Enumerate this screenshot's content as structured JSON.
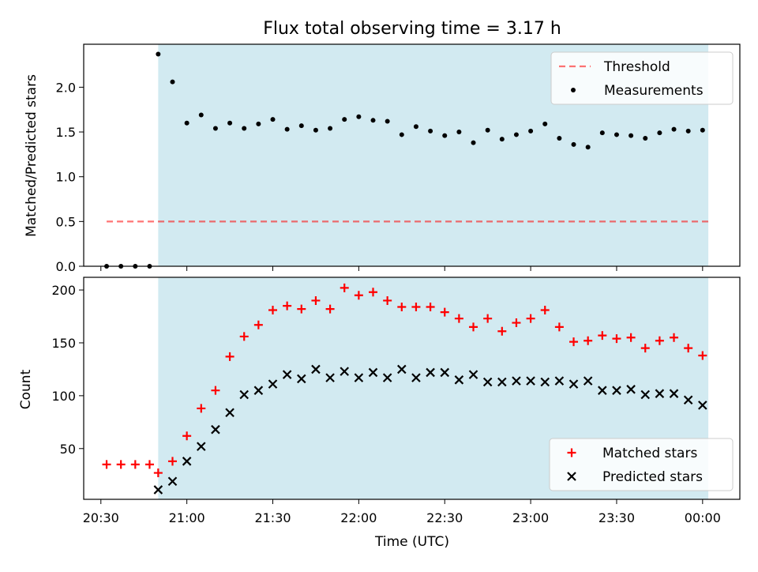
{
  "title": "Flux total observing time = 3.17 h",
  "xlabel": "Time (UTC)",
  "colors": {
    "shade": "#add8e6",
    "threshold": "#ff0000",
    "matched": "#ff0000",
    "predicted": "#000000",
    "measurement": "#000000"
  },
  "x_tick_labels": [
    "20:30",
    "21:00",
    "21:30",
    "22:00",
    "22:30",
    "23:00",
    "23:30",
    "00:00"
  ],
  "chart_data": [
    {
      "type": "scatter",
      "panel": "top",
      "ylabel": "Matched/Predicted stars",
      "ylim": [
        0,
        2.48
      ],
      "y_ticks": [
        0.0,
        0.5,
        1.0,
        1.5,
        2.0
      ],
      "y_tick_labels": [
        "0.0",
        "0.5",
        "1.0",
        "1.5",
        "2.0"
      ],
      "xlim": [
        "20:24",
        "00:13"
      ],
      "legend_position": "top-right",
      "shaded_region": {
        "x_start": "20:50",
        "x_end": "00:02"
      },
      "threshold": {
        "name": "Threshold",
        "y": 0.5,
        "x_start": "20:32",
        "x_end": "00:02",
        "style": "dashed"
      },
      "series": [
        {
          "name": "Measurements",
          "marker": "dot",
          "x": [
            "20:32",
            "20:37",
            "20:42",
            "20:47",
            "20:50",
            "20:55",
            "21:00",
            "21:05",
            "21:10",
            "21:15",
            "21:20",
            "21:25",
            "21:30",
            "21:35",
            "21:40",
            "21:45",
            "21:50",
            "21:55",
            "22:00",
            "22:05",
            "22:10",
            "22:15",
            "22:20",
            "22:25",
            "22:30",
            "22:35",
            "22:40",
            "22:45",
            "22:50",
            "22:55",
            "23:00",
            "23:05",
            "23:10",
            "23:15",
            "23:20",
            "23:25",
            "23:30",
            "23:35",
            "23:40",
            "23:45",
            "23:50",
            "23:55",
            "00:00"
          ],
          "y": [
            0.0,
            0.0,
            0.0,
            0.0,
            2.37,
            2.06,
            1.6,
            1.69,
            1.54,
            1.6,
            1.54,
            1.59,
            1.64,
            1.53,
            1.57,
            1.52,
            1.54,
            1.64,
            1.67,
            1.63,
            1.62,
            1.47,
            1.56,
            1.51,
            1.46,
            1.5,
            1.38,
            1.52,
            1.42,
            1.47,
            1.51,
            1.59,
            1.43,
            1.36,
            1.33,
            1.49,
            1.47,
            1.46,
            1.43,
            1.49,
            1.53,
            1.51,
            1.52
          ]
        }
      ]
    },
    {
      "type": "scatter",
      "panel": "bottom",
      "ylabel": "Count",
      "ylim": [
        2,
        212
      ],
      "y_ticks": [
        50,
        100,
        150,
        200
      ],
      "y_tick_labels": [
        "50",
        "100",
        "150",
        "200"
      ],
      "xlim": [
        "20:24",
        "00:13"
      ],
      "legend_position": "bottom-right",
      "shaded_region": {
        "x_start": "20:50",
        "x_end": "00:02"
      },
      "series": [
        {
          "name": "Matched stars",
          "marker": "plus",
          "x": [
            "20:32",
            "20:37",
            "20:42",
            "20:47",
            "20:50",
            "20:55",
            "21:00",
            "21:05",
            "21:10",
            "21:15",
            "21:20",
            "21:25",
            "21:30",
            "21:35",
            "21:40",
            "21:45",
            "21:50",
            "21:55",
            "22:00",
            "22:05",
            "22:10",
            "22:15",
            "22:20",
            "22:25",
            "22:30",
            "22:35",
            "22:40",
            "22:45",
            "22:50",
            "22:55",
            "23:00",
            "23:05",
            "23:10",
            "23:15",
            "23:20",
            "23:25",
            "23:30",
            "23:35",
            "23:40",
            "23:45",
            "23:50",
            "23:55",
            "00:00"
          ],
          "y": [
            35,
            35,
            35,
            35,
            27,
            38,
            62,
            88,
            105,
            137,
            156,
            167,
            181,
            185,
            182,
            190,
            182,
            202,
            195,
            198,
            190,
            184,
            184,
            184,
            179,
            173,
            165,
            173,
            161,
            169,
            173,
            181,
            165,
            151,
            152,
            157,
            154,
            155,
            145,
            152,
            155,
            145,
            138
          ]
        },
        {
          "name": "Predicted stars",
          "marker": "x",
          "x": [
            "20:50",
            "20:55",
            "21:00",
            "21:05",
            "21:10",
            "21:15",
            "21:20",
            "21:25",
            "21:30",
            "21:35",
            "21:40",
            "21:45",
            "21:50",
            "21:55",
            "22:00",
            "22:05",
            "22:10",
            "22:15",
            "22:20",
            "22:25",
            "22:30",
            "22:35",
            "22:40",
            "22:45",
            "22:50",
            "22:55",
            "23:00",
            "23:05",
            "23:10",
            "23:15",
            "23:20",
            "23:25",
            "23:30",
            "23:35",
            "23:40",
            "23:45",
            "23:50",
            "23:55",
            "00:00"
          ],
          "y": [
            11,
            19,
            38,
            52,
            68,
            84,
            101,
            105,
            111,
            120,
            116,
            125,
            117,
            123,
            117,
            122,
            117,
            125,
            117,
            122,
            122,
            115,
            120,
            113,
            113,
            114,
            114,
            113,
            114,
            111,
            114,
            105,
            105,
            106,
            101,
            102,
            102,
            96,
            91
          ]
        }
      ]
    }
  ]
}
